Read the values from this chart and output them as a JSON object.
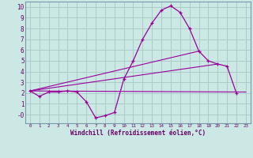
{
  "xlabel": "Windchill (Refroidissement éolien,°C)",
  "bg_color": "#cce8e4",
  "grid_color": "#aaccc8",
  "line_color": "#990099",
  "xlim": [
    -0.5,
    23.5
  ],
  "ylim": [
    -0.8,
    10.5
  ],
  "xticks": [
    0,
    1,
    2,
    3,
    4,
    5,
    6,
    7,
    8,
    9,
    10,
    11,
    12,
    13,
    14,
    15,
    16,
    17,
    18,
    19,
    20,
    21,
    22,
    23
  ],
  "yticks": [
    0,
    1,
    2,
    3,
    4,
    5,
    6,
    7,
    8,
    9,
    10
  ],
  "ytick_labels": [
    "-0",
    "1",
    "2",
    "3",
    "4",
    "5",
    "6",
    "7",
    "8",
    "9",
    "10"
  ],
  "curve1_x": [
    0,
    1,
    2,
    3,
    4,
    5,
    6,
    7,
    8,
    9,
    10,
    11,
    12,
    13,
    14,
    15,
    16,
    17,
    18,
    19,
    20,
    21,
    22
  ],
  "curve1_y": [
    2.2,
    1.7,
    2.1,
    2.1,
    2.2,
    2.1,
    1.2,
    -0.3,
    -0.1,
    0.2,
    3.3,
    5.0,
    7.0,
    8.5,
    9.7,
    10.1,
    9.5,
    8.0,
    5.9,
    5.0,
    4.7,
    4.5,
    2.0
  ],
  "line1_x": [
    0,
    23
  ],
  "line1_y": [
    2.2,
    2.1
  ],
  "line2_x": [
    0,
    18
  ],
  "line2_y": [
    2.2,
    5.9
  ],
  "line3_x": [
    0,
    22
  ],
  "line3_y": [
    2.2,
    2.0
  ],
  "font_color": "#660066"
}
